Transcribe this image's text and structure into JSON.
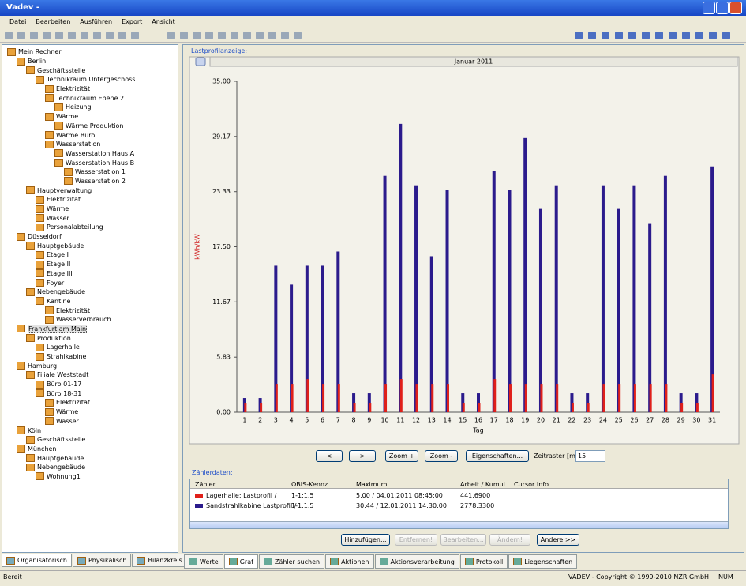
{
  "window": {
    "title": "Vadev -"
  },
  "menu": [
    "Datei",
    "Bearbeiten",
    "Ausführen",
    "Export",
    "Ansicht"
  ],
  "tree": {
    "label": "Mein Rechner",
    "children": [
      {
        "label": "Berlin",
        "children": [
          {
            "label": "Geschäftsstelle",
            "children": [
              {
                "label": "Technikraum Untergeschoss",
                "children": [
                  {
                    "label": "Elektrizität"
                  },
                  {
                    "label": "Technikraum Ebene 2",
                    "children": [
                      {
                        "label": "Heizung"
                      }
                    ]
                  },
                  {
                    "label": "Wärme",
                    "children": [
                      {
                        "label": "Wärme Produktion"
                      }
                    ]
                  },
                  {
                    "label": "Wärme Büro"
                  },
                  {
                    "label": "Wasserstation",
                    "children": [
                      {
                        "label": "Wasserstation Haus A"
                      },
                      {
                        "label": "Wasserstation Haus B",
                        "children": [
                          {
                            "label": "Wasserstation 1"
                          },
                          {
                            "label": "Wasserstation 2"
                          }
                        ]
                      }
                    ]
                  }
                ]
              }
            ]
          },
          {
            "label": "Hauptverwaltung",
            "children": [
              {
                "label": "Elektrizität"
              },
              {
                "label": "Wärme"
              },
              {
                "label": "Wasser"
              },
              {
                "label": "Personalabteilung"
              }
            ]
          }
        ]
      },
      {
        "label": "Düsseldorf",
        "children": [
          {
            "label": "Hauptgebäude",
            "children": [
              {
                "label": "Etage I"
              },
              {
                "label": "Etage II"
              },
              {
                "label": "Etage III"
              },
              {
                "label": "Foyer"
              }
            ]
          },
          {
            "label": "Nebengebäude",
            "children": [
              {
                "label": "Kantine",
                "children": [
                  {
                    "label": "Elektrizität"
                  },
                  {
                    "label": "Wasserverbrauch"
                  }
                ]
              }
            ]
          }
        ]
      },
      {
        "label": "Frankfurt am Main",
        "children": [
          {
            "label": "Produktion",
            "children": [
              {
                "label": "Lagerhalle"
              },
              {
                "label": "Strahlkabine"
              }
            ]
          }
        ]
      },
      {
        "label": "Hamburg",
        "children": [
          {
            "label": "Filiale Weststadt",
            "children": [
              {
                "label": "Büro 01-17"
              },
              {
                "label": "Büro 18-31",
                "children": [
                  {
                    "label": "Elektrizität"
                  },
                  {
                    "label": "Wärme"
                  },
                  {
                    "label": "Wasser"
                  }
                ]
              }
            ]
          }
        ]
      },
      {
        "label": "Köln",
        "children": [
          {
            "label": "Geschäftsstelle"
          }
        ]
      },
      {
        "label": "München",
        "children": [
          {
            "label": "Hauptgebäude"
          },
          {
            "label": "Nebengebäude",
            "children": [
              {
                "label": "Wohnung1"
              }
            ]
          }
        ]
      }
    ]
  },
  "left_tabs": [
    "Organisatorisch",
    "Physikalisch",
    "Bilanzkreis"
  ],
  "chart_panel": {
    "label": "Lastprofilanzeige:"
  },
  "chart_data": {
    "type": "spike",
    "title": "Januar 2011",
    "xlabel": "Tag",
    "ylabel": "kWh/kW",
    "categories": [
      "1",
      "2",
      "3",
      "4",
      "5",
      "6",
      "7",
      "8",
      "9",
      "10",
      "11",
      "12",
      "13",
      "14",
      "15",
      "16",
      "17",
      "18",
      "19",
      "20",
      "21",
      "22",
      "23",
      "24",
      "25",
      "26",
      "27",
      "28",
      "29",
      "30",
      "31"
    ],
    "ylim": [
      0,
      35
    ],
    "yticks": [
      {
        "value": 0,
        "label": "0.00"
      },
      {
        "value": 5.83,
        "label": "5.83"
      },
      {
        "value": 11.67,
        "label": "11.67"
      },
      {
        "value": 17.5,
        "label": "17.50"
      },
      {
        "value": 23.33,
        "label": "23.33"
      },
      {
        "value": 29.17,
        "label": "29.17"
      },
      {
        "value": 35,
        "label": "35.00"
      }
    ],
    "series": [
      {
        "color": "#2b1b8c",
        "values": [
          1.5,
          1.5,
          15.5,
          13.5,
          15.5,
          15.5,
          17,
          2,
          2,
          25,
          30.5,
          24,
          16.5,
          23.5,
          2,
          2,
          25.5,
          23.5,
          29,
          21.5,
          24,
          2,
          2,
          24,
          21.5,
          24,
          20,
          25,
          2,
          2,
          26
        ]
      },
      {
        "color": "#e0201a",
        "values": [
          1,
          1,
          3,
          3,
          3.5,
          3,
          3,
          1,
          1,
          3,
          3.5,
          3,
          3,
          3,
          1,
          1,
          3.5,
          3,
          3,
          3,
          3,
          1,
          1,
          3,
          3,
          3,
          3,
          3,
          1,
          1,
          4
        ]
      }
    ]
  },
  "controls": {
    "prev": "<",
    "next": ">",
    "zoom_in": "Zoom +",
    "zoom_out": "Zoom -",
    "properties": "Eigenschaften...",
    "interval_label": "Zeitraster [min]",
    "interval": "15"
  },
  "meter_data": {
    "label": "Zählerdaten:",
    "columns": [
      "Zähler",
      "OBIS-Kennz.",
      "Maximum",
      "Arbeit / Kumul.",
      "Cursor Info"
    ],
    "rows": [
      [
        "Lagerhalle: Lastprofil /",
        "1-1:1.5",
        "5.00 / 04.01.2011 08:45:00",
        "441.6900"
      ],
      [
        "Sandstrahlkabine Lastprofil /",
        "1-1:1.5",
        "30.44 / 12.01.2011 14:30:00",
        "2778.3300"
      ]
    ]
  },
  "meter_buttons": [
    "Hinzufügen...",
    "Entfernen!",
    "Bearbeiten...",
    "Ändern!",
    "Andere >>"
  ],
  "bottom_tabs": [
    "Werte",
    "Graf",
    "Zähler suchen",
    "Aktionen",
    "Aktionsverarbeitung",
    "Protokoll",
    "Liegenschaften"
  ],
  "status": {
    "left": "Bereit",
    "copyright": "VADEV - Copyright © 1999-2010 NZR GmbH",
    "num": "NUM"
  }
}
